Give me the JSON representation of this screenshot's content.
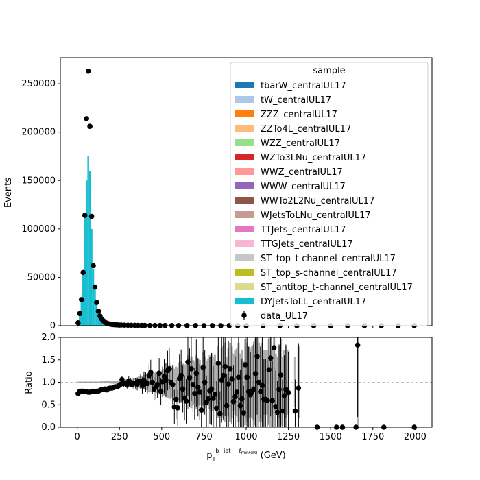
{
  "chart_data": [
    {
      "type": "bar",
      "panel": "main",
      "ylabel": "Events",
      "xlim": [
        -100,
        2100
      ],
      "ylim": [
        0,
        277000
      ],
      "yticks": [
        0,
        50000,
        100000,
        150000,
        200000,
        250000
      ],
      "ytick_labels": [
        "0",
        "50000",
        "100000",
        "150000",
        "200000",
        "250000"
      ],
      "legend": {
        "title": "sample",
        "placement": "top-right",
        "entries": [
          {
            "label": "tbarW_centralUL17",
            "color": "#1f77b4"
          },
          {
            "label": "tW_centralUL17",
            "color": "#aec7e8"
          },
          {
            "label": "ZZZ_centralUL17",
            "color": "#ff7f0e"
          },
          {
            "label": "ZZTo4L_centralUL17",
            "color": "#ffbb78"
          },
          {
            "label": "WZZ_centralUL17",
            "color": "#98df8a"
          },
          {
            "label": "WZTo3LNu_centralUL17",
            "color": "#d62728"
          },
          {
            "label": "WWZ_centralUL17",
            "color": "#ff9896"
          },
          {
            "label": "WWW_centralUL17",
            "color": "#9467bd"
          },
          {
            "label": "WWTo2L2Nu_centralUL17",
            "color": "#8c564b"
          },
          {
            "label": "WJetsToLNu_centralUL17",
            "color": "#c49c94"
          },
          {
            "label": "TTJets_centralUL17",
            "color": "#e377c2"
          },
          {
            "label": "TTGJets_centralUL17",
            "color": "#f7b6d2"
          },
          {
            "label": "ST_top_t-channel_centralUL17",
            "color": "#c7c7c7"
          },
          {
            "label": "ST_top_s-channel_centralUL17",
            "color": "#bcbd22"
          },
          {
            "label": "ST_antitop_t-channel_centralUL17",
            "color": "#dbdb8d"
          },
          {
            "label": "DYJetsToLL_centralUL17",
            "color": "#17becf"
          }
        ],
        "data_label": "data_UL17"
      },
      "series": [
        {
          "name": "DYJetsToLL_centralUL17",
          "color": "#17becf",
          "bin_width": 10,
          "x": [
            0,
            10,
            20,
            30,
            40,
            50,
            60,
            70,
            80,
            90,
            100,
            110,
            120,
            130,
            140,
            150,
            160,
            170,
            180,
            190,
            200,
            210,
            220,
            230,
            240,
            250,
            260,
            270,
            280,
            290,
            300,
            350,
            400,
            450,
            500,
            600,
            700,
            800,
            900,
            1000,
            1100,
            1200,
            1300,
            1400,
            1500,
            1600,
            1700,
            1800,
            1900,
            1990
          ],
          "values": [
            3500,
            13000,
            28000,
            55000,
            113000,
            150000,
            175000,
            160000,
            100000,
            58000,
            38000,
            24000,
            14000,
            9000,
            6000,
            4200,
            3000,
            2300,
            1800,
            1500,
            1200,
            1000,
            900,
            800,
            700,
            600,
            520,
            450,
            400,
            360,
            300,
            240,
            190,
            150,
            120,
            90,
            70,
            55,
            45,
            35,
            28,
            22,
            17,
            13,
            10,
            8,
            6,
            5,
            4,
            3
          ]
        },
        {
          "name": "data_UL17",
          "color": "#000000",
          "x": [
            5,
            15,
            25,
            35,
            45,
            55,
            65,
            75,
            85,
            95,
            105,
            115,
            125,
            135,
            145,
            155,
            165,
            175,
            185,
            195,
            205,
            215,
            225,
            235,
            245,
            260,
            280,
            300,
            320,
            340,
            360,
            380,
            400,
            430,
            460,
            490,
            520,
            560,
            600,
            650,
            700,
            750,
            800,
            850,
            900,
            950,
            1000,
            1100,
            1200,
            1300,
            1400,
            1500,
            1600,
            1700,
            1800,
            1900,
            1995
          ],
          "values": [
            3000,
            12500,
            27000,
            55000,
            114000,
            214000,
            263000,
            206000,
            113000,
            62000,
            40000,
            24000,
            15000,
            10000,
            7000,
            5000,
            3500,
            2600,
            2000,
            1600,
            1300,
            1100,
            950,
            850,
            750,
            650,
            560,
            500,
            450,
            400,
            350,
            310,
            280,
            250,
            230,
            210,
            190,
            170,
            150,
            130,
            110,
            90,
            75,
            60,
            50,
            40,
            32,
            24,
            18,
            14,
            11,
            9,
            7,
            5,
            4,
            3,
            2
          ]
        }
      ]
    },
    {
      "type": "scatter",
      "panel": "ratio",
      "xlabel": "p_T^{b-jet + ℓ_{min(dR)}} (GeV)",
      "ylabel": "Ratio",
      "xlim": [
        -100,
        2100
      ],
      "ylim": [
        0,
        2
      ],
      "reference_line": 1.0,
      "xticks": [
        0,
        250,
        500,
        750,
        1000,
        1250,
        1500,
        1750,
        2000
      ],
      "xtick_labels": [
        "0",
        "250",
        "500",
        "750",
        "1000",
        "1250",
        "1500",
        "1750",
        "2000"
      ],
      "yticks": [
        0.0,
        0.5,
        1.0,
        1.5,
        2.0
      ],
      "ytick_labels": [
        "0.0",
        "0.5",
        "1.0",
        "1.5",
        "2.0"
      ],
      "series": [
        {
          "name": "data_UL17",
          "x": [
            5,
            15,
            25,
            35,
            45,
            55,
            65,
            75,
            85,
            95,
            105,
            115,
            125,
            135,
            145,
            155,
            165,
            175,
            185,
            195,
            205,
            215,
            225,
            235,
            245,
            255,
            265,
            275,
            285,
            295,
            305,
            315,
            325,
            335,
            345,
            355,
            365,
            375,
            385,
            395,
            405,
            415,
            425,
            435,
            445,
            455,
            465,
            475,
            485,
            495,
            505,
            515,
            525,
            535,
            545,
            555,
            565,
            575,
            585,
            595,
            605,
            615,
            625,
            635,
            645,
            655,
            665,
            675,
            685,
            695,
            705,
            715,
            725,
            735,
            745,
            755,
            765,
            775,
            785,
            795,
            805,
            815,
            825,
            835,
            845,
            855,
            865,
            875,
            885,
            895,
            905,
            915,
            925,
            935,
            945,
            955,
            965,
            975,
            985,
            995,
            1005,
            1015,
            1025,
            1035,
            1045,
            1055,
            1065,
            1075,
            1085,
            1095,
            1105,
            1115,
            1125,
            1135,
            1145,
            1155,
            1165,
            1175,
            1185,
            1195,
            1205,
            1215,
            1225,
            1235,
            1250,
            1290,
            1310,
            1420,
            1535,
            1570,
            1650,
            1660,
            1815,
            1995
          ],
          "values": [
            0.75,
            0.8,
            0.8,
            0.8,
            0.79,
            0.79,
            0.78,
            0.78,
            0.79,
            0.8,
            0.79,
            0.8,
            0.8,
            0.82,
            0.84,
            0.84,
            0.85,
            0.83,
            0.86,
            0.87,
            0.87,
            0.88,
            0.9,
            0.9,
            0.92,
            0.95,
            1.06,
            0.97,
            0.97,
            0.94,
            1.03,
            1.0,
            0.95,
            0.98,
            0.98,
            0.96,
            1.03,
            1.02,
            0.93,
            1.04,
            1.0,
            0.97,
            1.15,
            1.22,
            1.0,
            0.85,
            0.9,
            0.95,
            1.2,
            0.8,
            1.01,
            1.13,
            1.05,
            1.26,
            1.3,
            1.0,
            0.95,
            0.45,
            0.62,
            0.43,
            1.08,
            1.15,
            0.85,
            0.65,
            0.58,
            1.45,
            1.1,
            1.3,
            0.95,
            0.75,
            1.2,
            0.89,
            0.78,
            0.38,
            1.33,
            1.0,
            0.55,
            0.63,
            0.81,
            0.85,
            0.64,
            0.73,
            0.42,
            1.42,
            0.3,
            1.05,
            1.15,
            1.35,
            0.48,
            0.96,
            1.3,
            1.07,
            0.57,
            0.68,
            0.78,
            1.11,
            0.48,
            0.63,
            0.32,
            1.39,
            1.11,
            0.79,
            0.72,
            0.8,
            0.85,
            1.19,
            1.58,
            1.0,
            0.79,
            0.93,
            0.62,
            0.62,
            0.6,
            1.28,
            1.54,
            0.59,
            1.77,
            0.46,
            0.33,
            0.84,
            1.16,
            0.36,
            0.7,
            0.84,
            0.77,
            0.36,
            0.87,
            0.0,
            0.0,
            0.0,
            0.0,
            1.83,
            0.0,
            0.0
          ],
          "errors": [
            0.02,
            0.02,
            0.02,
            0.02,
            0.02,
            0.02,
            0.02,
            0.02,
            0.02,
            0.02,
            0.02,
            0.02,
            0.02,
            0.02,
            0.03,
            0.03,
            0.03,
            0.03,
            0.03,
            0.03,
            0.04,
            0.04,
            0.04,
            0.05,
            0.05,
            0.06,
            0.08,
            0.07,
            0.08,
            0.08,
            0.1,
            0.1,
            0.11,
            0.12,
            0.12,
            0.14,
            0.16,
            0.17,
            0.18,
            0.2,
            0.22,
            0.22,
            0.26,
            0.28,
            0.26,
            0.26,
            0.28,
            0.3,
            0.34,
            0.3,
            0.34,
            0.38,
            0.38,
            0.44,
            0.46,
            0.42,
            0.44,
            0.38,
            0.44,
            0.4,
            0.55,
            0.58,
            0.52,
            0.5,
            0.5,
            0.75,
            0.65,
            0.72,
            0.62,
            0.58,
            0.75,
            0.65,
            0.62,
            0.45,
            0.85,
            0.72,
            0.6,
            0.65,
            0.75,
            0.8,
            0.72,
            0.78,
            0.6,
            1.0,
            0.5,
            0.95,
            1.0,
            1.1,
            0.7,
            0.95,
            1.1,
            1.0,
            0.8,
            0.9,
            0.95,
            1.1,
            0.8,
            0.9,
            0.6,
            1.2,
            1.1,
            1.0,
            0.95,
            1.0,
            1.05,
            1.2,
            1.3,
            1.1,
            1.0,
            1.1,
            0.9,
            0.9,
            0.9,
            1.2,
            1.3,
            0.9,
            1.4,
            0.8,
            0.7,
            1.0,
            1.2,
            0.7,
            0.9,
            1.0,
            0.9,
            0.7,
            1.0,
            0.0,
            0.0,
            0.0,
            0.0,
            1.6,
            0.0,
            0.0
          ]
        }
      ]
    }
  ]
}
